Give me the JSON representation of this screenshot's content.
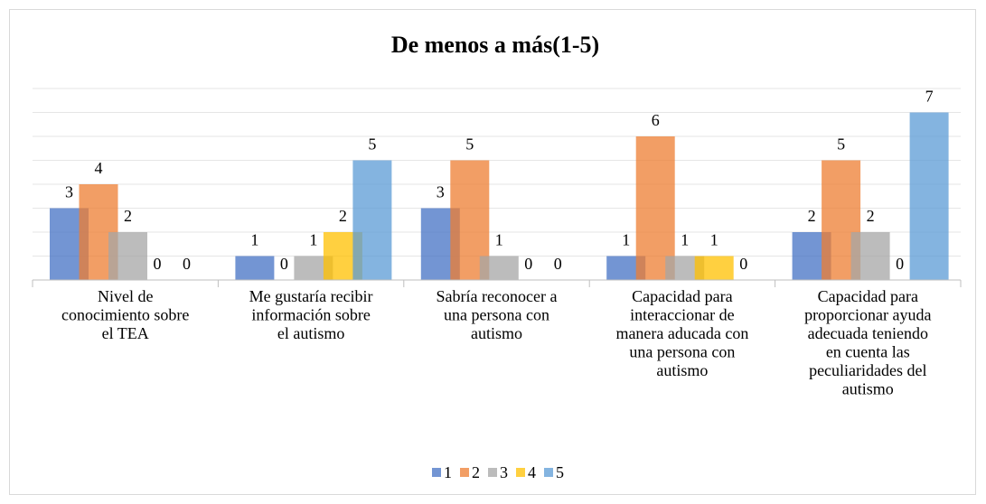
{
  "chart_data": {
    "type": "bar",
    "title": "De menos a más(1-5)",
    "categories": [
      "Nivel de\nconocimiento sobre\nel TEA",
      "Me gustaría recibir\ninformación sobre\nel autismo",
      "Sabría reconocer a\nuna persona con\nautismo",
      "Capacidad para\ninteraccionar de\nmanera aducada con\nuna persona con\nautismo",
      "Capacidad para\nproporcionar ayuda\nadecuada teniendo\nen cuenta las\npeculiaridades del\nautismo"
    ],
    "series": [
      {
        "name": "1",
        "color": "#4472c4",
        "values": [
          3,
          1,
          3,
          1,
          2
        ]
      },
      {
        "name": "2",
        "color": "#ed7d31",
        "values": [
          4,
          0,
          5,
          6,
          5
        ]
      },
      {
        "name": "3",
        "color": "#a5a5a5",
        "values": [
          2,
          1,
          1,
          1,
          2
        ]
      },
      {
        "name": "4",
        "color": "#ffc000",
        "values": [
          0,
          2,
          0,
          1,
          0
        ]
      },
      {
        "name": "5",
        "color": "#5b9bd5",
        "values": [
          0,
          5,
          0,
          0,
          7
        ]
      }
    ],
    "ylim": [
      0,
      8
    ],
    "yticks": [
      0,
      1,
      2,
      3,
      4,
      5,
      6,
      7,
      8
    ],
    "grid": true,
    "legend": "bottom"
  }
}
